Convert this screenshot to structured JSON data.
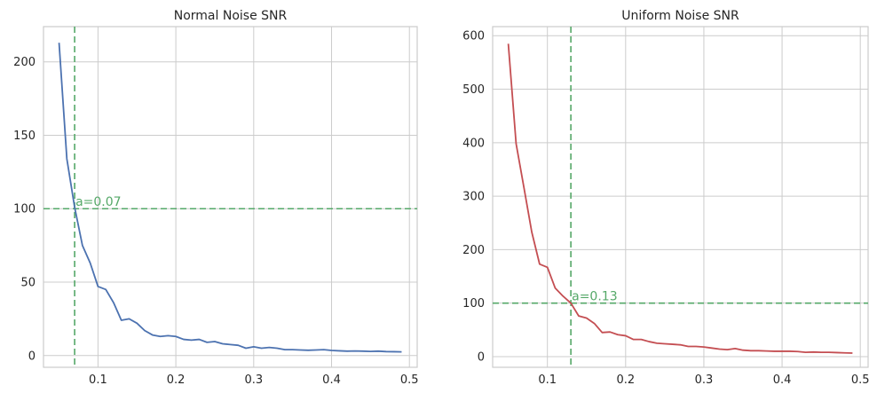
{
  "chart_data": [
    {
      "type": "line",
      "title": "Normal Noise SNR",
      "xlabel": "",
      "ylabel": "",
      "xlim": [
        0.03,
        0.51
      ],
      "ylim": [
        -8,
        224
      ],
      "xticks": [
        0.1,
        0.2,
        0.3,
        0.4,
        0.5
      ],
      "xtick_labels": [
        "0.1",
        "0.2",
        "0.3",
        "0.4",
        "0.5"
      ],
      "yticks": [
        0,
        50,
        100,
        150,
        200
      ],
      "ytick_labels": [
        "0",
        "50",
        "100",
        "150",
        "200"
      ],
      "grid": true,
      "color": "#4c72b0",
      "series": [
        {
          "x": [
            0.05,
            0.06,
            0.07,
            0.08,
            0.09,
            0.1,
            0.11,
            0.12,
            0.13,
            0.14,
            0.15,
            0.16,
            0.17,
            0.18,
            0.19,
            0.2,
            0.21,
            0.22,
            0.23,
            0.24,
            0.25,
            0.26,
            0.27,
            0.28,
            0.29,
            0.3,
            0.31,
            0.32,
            0.33,
            0.34,
            0.35,
            0.36,
            0.37,
            0.38,
            0.39,
            0.4,
            0.41,
            0.42,
            0.43,
            0.44,
            0.45,
            0.46,
            0.47,
            0.48,
            0.49
          ],
          "y": [
            213,
            134,
            101,
            75,
            63,
            47,
            45,
            36,
            24,
            25,
            22,
            17,
            14,
            13,
            13.5,
            13,
            11,
            10.5,
            11,
            9,
            9.5,
            8,
            7.5,
            7,
            5,
            6,
            5,
            5.5,
            5,
            4,
            4,
            3.8,
            3.6,
            3.8,
            4,
            3.5,
            3.2,
            3,
            3.1,
            3,
            2.8,
            3,
            2.7,
            2.6,
            2.5
          ]
        }
      ],
      "hline": 100,
      "vline": 0.07,
      "annotation": "a=0.07"
    },
    {
      "type": "line",
      "title": "Uniform Noise SNR",
      "xlabel": "",
      "ylabel": "",
      "xlim": [
        0.03,
        0.51
      ],
      "ylim": [
        -20,
        617
      ],
      "xticks": [
        0.1,
        0.2,
        0.3,
        0.4,
        0.5
      ],
      "xtick_labels": [
        "0.1",
        "0.2",
        "0.3",
        "0.4",
        "0.5"
      ],
      "yticks": [
        0,
        100,
        200,
        300,
        400,
        500,
        600
      ],
      "ytick_labels": [
        "0",
        "100",
        "200",
        "300",
        "400",
        "500",
        "600"
      ],
      "grid": true,
      "color": "#c44e52",
      "series": [
        {
          "x": [
            0.05,
            0.06,
            0.07,
            0.08,
            0.09,
            0.1,
            0.11,
            0.12,
            0.13,
            0.14,
            0.15,
            0.16,
            0.17,
            0.18,
            0.19,
            0.2,
            0.21,
            0.22,
            0.23,
            0.24,
            0.25,
            0.26,
            0.27,
            0.28,
            0.29,
            0.3,
            0.31,
            0.32,
            0.33,
            0.34,
            0.35,
            0.36,
            0.37,
            0.38,
            0.39,
            0.4,
            0.41,
            0.42,
            0.43,
            0.44,
            0.45,
            0.46,
            0.47,
            0.48,
            0.49
          ],
          "y": [
            585,
            398,
            316,
            233,
            173,
            167,
            128,
            113,
            100,
            76,
            72,
            62,
            45,
            46,
            41,
            39,
            32,
            32,
            28,
            25,
            24,
            23,
            22,
            19,
            19,
            18,
            16,
            14,
            13,
            15,
            12,
            11,
            11,
            10.5,
            10,
            10,
            10,
            9.5,
            8,
            8.5,
            8,
            8,
            7.5,
            7,
            6.5
          ]
        }
      ],
      "hline": 100,
      "vline": 0.13,
      "annotation": "a=0.13"
    }
  ]
}
